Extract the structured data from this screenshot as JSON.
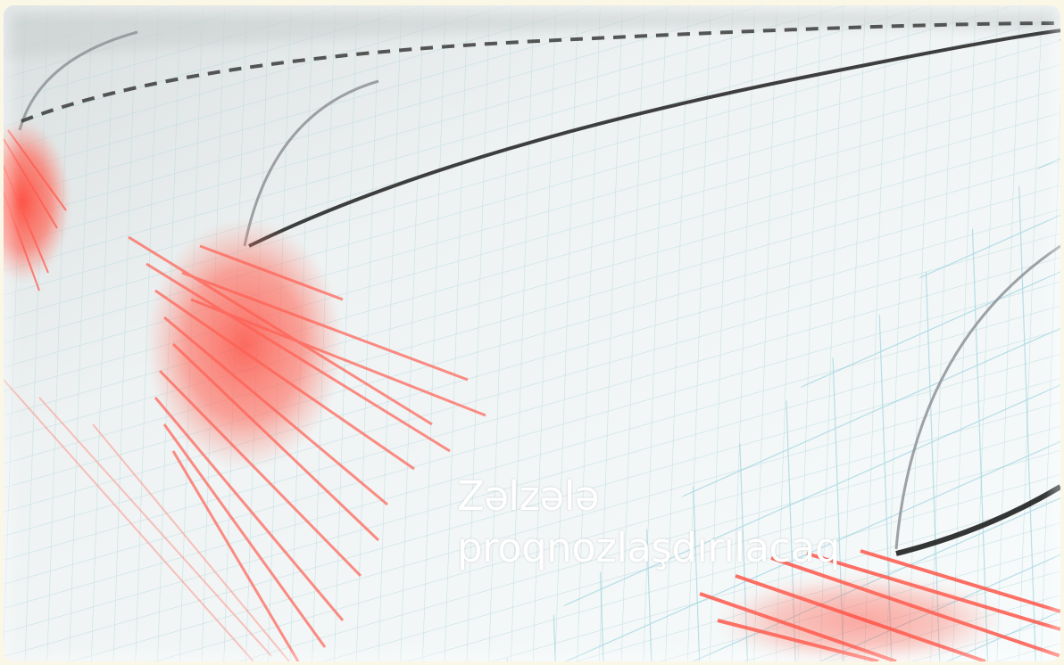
{
  "image": {
    "subject": "seismograph-paper-with-earthquake-trace",
    "colors": {
      "paper": "#eef3f3",
      "grid": "#9fd3de",
      "trace": "#ff5a4e",
      "needle": "#2b2b2b",
      "frame": "#fbf7e6"
    }
  },
  "headline": {
    "line1": "Zəlzələ",
    "line2": "proqnozlaşdırılacaq"
  }
}
